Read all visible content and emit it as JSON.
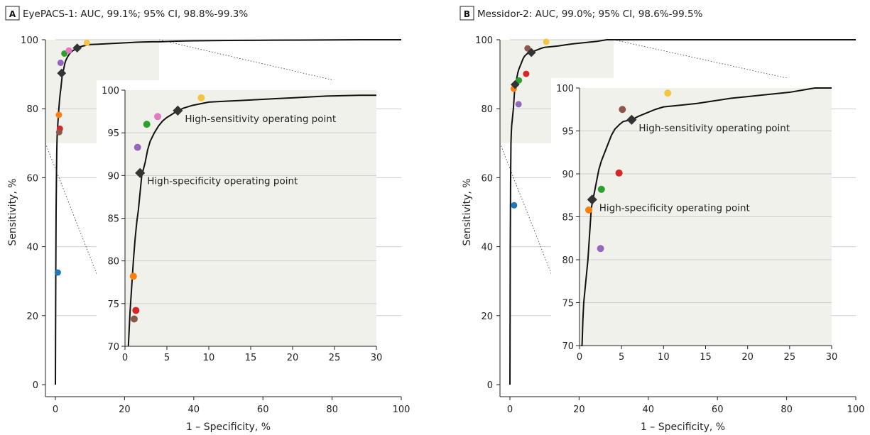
{
  "chart_data": [
    {
      "type": "line",
      "panel_letter": "A",
      "title": "EyePACS-1: AUC, 99.1%; 95% CI, 98.8%-99.3%",
      "xlabel": "1 – Specificity, %",
      "ylabel": "Sensitivity, %",
      "xlim": [
        0,
        100
      ],
      "ylim": [
        0,
        100
      ],
      "xticks": [
        "0",
        "20",
        "40",
        "60",
        "80",
        "100"
      ],
      "yticks": [
        "0",
        "20",
        "40",
        "60",
        "80",
        "100"
      ],
      "grid": true,
      "roc_curve": [
        [
          0,
          0
        ],
        [
          0.1,
          30
        ],
        [
          0.2,
          50
        ],
        [
          0.3,
          60
        ],
        [
          0.4,
          68
        ],
        [
          0.5,
          72
        ],
        [
          0.6,
          74
        ],
        [
          0.8,
          77
        ],
        [
          1.0,
          80
        ],
        [
          1.2,
          82.5
        ],
        [
          1.4,
          84.5
        ],
        [
          1.6,
          86
        ],
        [
          1.8,
          88
        ],
        [
          2.0,
          90
        ],
        [
          2.4,
          91.5
        ],
        [
          2.7,
          93
        ],
        [
          3.0,
          94
        ],
        [
          3.5,
          95
        ],
        [
          4.0,
          95.8
        ],
        [
          4.5,
          96.4
        ],
        [
          5.0,
          96.8
        ],
        [
          5.5,
          97.1
        ],
        [
          6.3,
          97.6
        ],
        [
          7,
          97.9
        ],
        [
          8,
          98.2
        ],
        [
          9,
          98.4
        ],
        [
          10,
          98.6
        ],
        [
          12,
          98.7
        ],
        [
          14,
          98.8
        ],
        [
          16,
          98.9
        ],
        [
          18,
          99.0
        ],
        [
          20,
          99.1
        ],
        [
          22,
          99.2
        ],
        [
          24,
          99.3
        ],
        [
          28,
          99.4
        ],
        [
          30,
          99.4
        ],
        [
          35,
          99.6
        ],
        [
          40,
          99.7
        ],
        [
          50,
          99.8
        ],
        [
          60,
          99.85
        ],
        [
          70,
          99.9
        ],
        [
          80,
          99.95
        ],
        [
          90,
          100
        ],
        [
          100,
          100
        ]
      ],
      "operating_points": [
        {
          "label": "High-specificity operating point",
          "x": 1.8,
          "y": 90.3
        },
        {
          "label": "High-sensitivity operating point",
          "x": 6.3,
          "y": 97.6
        }
      ],
      "ophthalmologists": [
        {
          "color": "#1f77b4",
          "x": 0.7,
          "y": 32.5
        },
        {
          "color": "#ff7f0e",
          "x": 1.0,
          "y": 78.2
        },
        {
          "color": "#d62728",
          "x": 1.3,
          "y": 74.2
        },
        {
          "color": "#8c564b",
          "x": 1.1,
          "y": 73.2
        },
        {
          "color": "#9467bd",
          "x": 1.5,
          "y": 93.3
        },
        {
          "color": "#2ca02c",
          "x": 2.6,
          "y": 96.0
        },
        {
          "color": "#e377c2",
          "x": 3.9,
          "y": 96.9
        },
        {
          "color": "#f4c542",
          "x": 9.1,
          "y": 99.1
        }
      ],
      "inset": {
        "xlim": [
          0,
          30
        ],
        "ylim": [
          70,
          100
        ],
        "xticks": [
          "0",
          "5",
          "10",
          "15",
          "20",
          "25",
          "30"
        ],
        "yticks": [
          "70",
          "75",
          "80",
          "85",
          "90",
          "95",
          "100"
        ],
        "zoom_region": {
          "x": [
            0,
            30
          ],
          "y": [
            70,
            100
          ]
        }
      }
    },
    {
      "type": "line",
      "panel_letter": "B",
      "title": "Messidor-2: AUC, 99.0%; 95% CI, 98.6%-99.5%",
      "xlabel": "1 – Specificity, %",
      "ylabel": "Sensitivity, %",
      "xlim": [
        0,
        100
      ],
      "ylim": [
        0,
        100
      ],
      "xticks": [
        "0",
        "20",
        "40",
        "60",
        "80",
        "100"
      ],
      "yticks": [
        "0",
        "20",
        "40",
        "60",
        "80",
        "100"
      ],
      "grid": true,
      "roc_curve": [
        [
          0,
          0
        ],
        [
          0.1,
          40
        ],
        [
          0.2,
          60
        ],
        [
          0.3,
          70
        ],
        [
          0.4,
          73
        ],
        [
          0.5,
          75
        ],
        [
          0.6,
          76
        ],
        [
          0.8,
          78
        ],
        [
          1.0,
          80
        ],
        [
          1.2,
          83
        ],
        [
          1.4,
          86
        ],
        [
          1.6,
          87
        ],
        [
          1.8,
          88
        ],
        [
          2.0,
          89
        ],
        [
          2.3,
          90.5
        ],
        [
          2.6,
          91.5
        ],
        [
          3.0,
          92.5
        ],
        [
          3.4,
          93.5
        ],
        [
          3.8,
          94.5
        ],
        [
          4.2,
          95.2
        ],
        [
          4.7,
          95.7
        ],
        [
          5.2,
          96.1
        ],
        [
          6.2,
          96.3
        ],
        [
          7,
          96.7
        ],
        [
          8,
          97.1
        ],
        [
          9,
          97.5
        ],
        [
          10,
          97.8
        ],
        [
          12,
          98.0
        ],
        [
          14,
          98.2
        ],
        [
          16,
          98.5
        ],
        [
          18,
          98.8
        ],
        [
          20,
          99.0
        ],
        [
          22,
          99.2
        ],
        [
          25,
          99.5
        ],
        [
          28,
          100
        ],
        [
          30,
          100
        ],
        [
          40,
          100
        ],
        [
          60,
          100
        ],
        [
          80,
          100
        ],
        [
          100,
          100
        ]
      ],
      "operating_points": [
        {
          "label": "High-specificity operating point",
          "x": 1.5,
          "y": 87.0
        },
        {
          "label": "High-sensitivity operating point",
          "x": 6.2,
          "y": 96.3
        }
      ],
      "ophthalmologists": [
        {
          "color": "#1f77b4",
          "x": 1.2,
          "y": 52.0
        },
        {
          "color": "#ff7f0e",
          "x": 1.1,
          "y": 85.8
        },
        {
          "color": "#2ca02c",
          "x": 2.6,
          "y": 88.2
        },
        {
          "color": "#d62728",
          "x": 4.7,
          "y": 90.1
        },
        {
          "color": "#9467bd",
          "x": 2.5,
          "y": 81.3
        },
        {
          "color": "#8c564b",
          "x": 5.1,
          "y": 97.5
        },
        {
          "color": "#f4c542",
          "x": 10.5,
          "y": 99.4
        }
      ],
      "inset": {
        "xlim": [
          0,
          30
        ],
        "ylim": [
          70,
          100
        ],
        "xticks": [
          "0",
          "5",
          "10",
          "15",
          "20",
          "25",
          "30"
        ],
        "yticks": [
          "70",
          "75",
          "80",
          "85",
          "90",
          "95",
          "100"
        ],
        "zoom_region": {
          "x": [
            0,
            30
          ],
          "y": [
            70,
            100
          ]
        }
      }
    }
  ],
  "colors": {
    "curve": "#111111",
    "inset_background": "#f1f1ec",
    "grid": "#cccccc",
    "operating_point_marker": "#333333"
  }
}
